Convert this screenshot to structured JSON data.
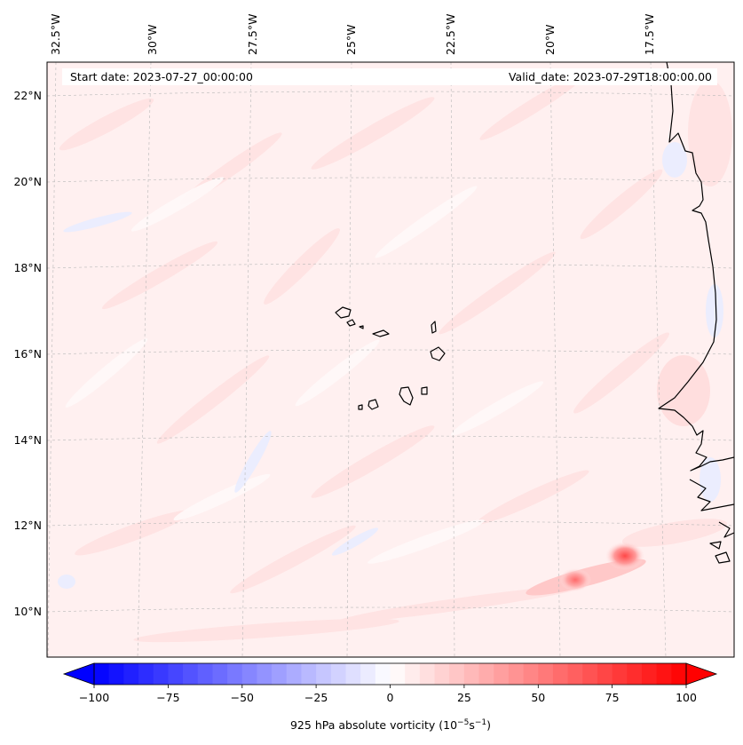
{
  "map": {
    "header": {
      "start_date": "Start date: 2023-07-27_00:00:00",
      "valid_date": "Valid_date: 2023-07-29T18:00:00.00"
    },
    "lon_labels": [
      "32.5°W",
      "30°W",
      "27.5°W",
      "25°W",
      "22.5°W",
      "20°W",
      "17.5°W"
    ],
    "lat_labels": [
      "22°N",
      "20°N",
      "18°N",
      "16°N",
      "14°N",
      "12°N",
      "10°N"
    ],
    "colorbar": {
      "ticks": [
        "−100",
        "−75",
        "−50",
        "−25",
        "0",
        "25",
        "50",
        "75",
        "100"
      ],
      "label_prefix": "925 hPa absolute vorticity (10",
      "label_exp1": "−5",
      "label_mid": "s",
      "label_exp2": "−1",
      "label_suffix": ")",
      "min": -100,
      "max": 100,
      "levels": 40,
      "cmap": "bwr",
      "negative_color": "#0000ff",
      "zero_color": "#ffffff",
      "positive_color": "#ff0000"
    },
    "colors": {
      "coastline": "#000000",
      "gridline": "#b0b0b0",
      "background_weak_positive": "#fff1f1"
    }
  }
}
